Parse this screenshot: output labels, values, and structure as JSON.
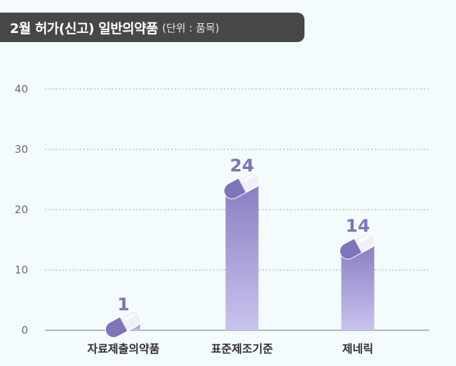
{
  "header": {
    "title": "2월 허가(신고) 일반의약품",
    "unit": "(단위 : 품목)"
  },
  "chart_data": {
    "type": "bar",
    "categories": [
      "자료제출의약품",
      "표준제조기준",
      "제네릭"
    ],
    "values": [
      1,
      24,
      14
    ],
    "data_labels": [
      "1",
      "24",
      "14"
    ],
    "yticks": [
      "0",
      "10",
      "20",
      "30",
      "40"
    ],
    "ylim": [
      0,
      40
    ],
    "grid": true,
    "bar_color_top": "#8a80c2",
    "bar_color_bottom": "#c9c3ef",
    "label_color": "#7c73b6"
  }
}
